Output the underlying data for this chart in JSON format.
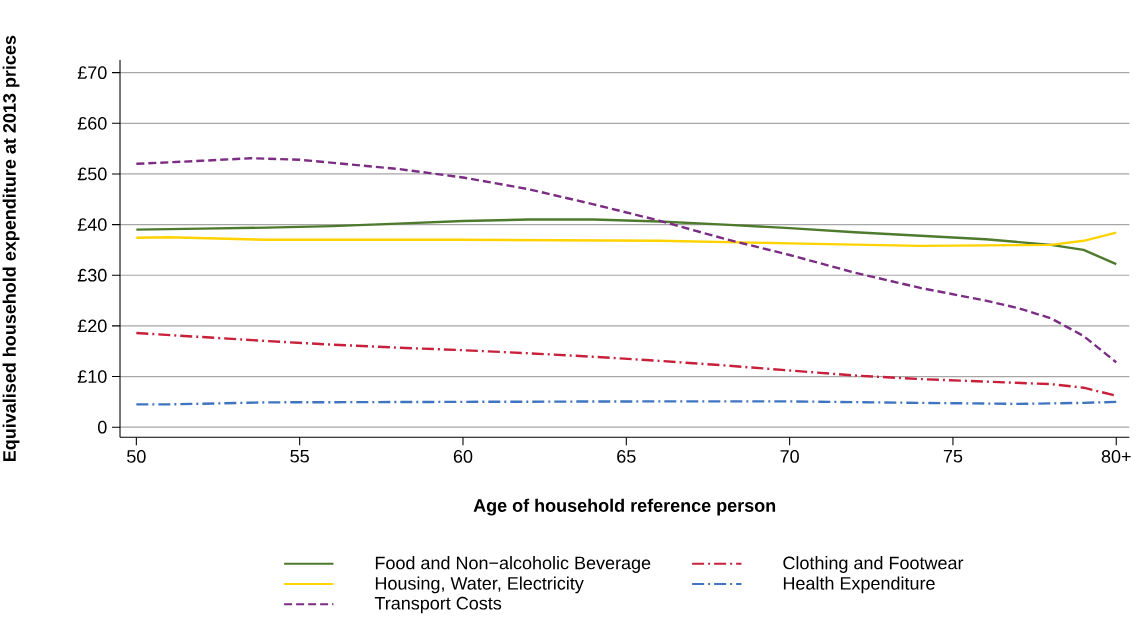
{
  "chart_data": {
    "type": "line",
    "xlabel": "Age of household reference person",
    "ylabel": "Equivalised household expenditure at 2013 prices",
    "xlim": [
      49.5,
      80.4
    ],
    "ylim": [
      -2,
      72.5
    ],
    "xticks": [
      50,
      55,
      60,
      65,
      70,
      75,
      {
        "value": 80,
        "label": "80+"
      }
    ],
    "yticks": [
      0,
      {
        "value": 10,
        "label": "£10"
      },
      {
        "value": 20,
        "label": "£20"
      },
      {
        "value": 30,
        "label": "£30"
      },
      {
        "value": 40,
        "label": "£40"
      },
      {
        "value": 50,
        "label": "£50"
      },
      {
        "value": 60,
        "label": "£60"
      },
      {
        "value": 70,
        "label": "£70"
      }
    ],
    "grid": "y",
    "legend": "bottom",
    "marker": "none",
    "series": [
      {
        "name": "Food and Non−alcoholic Beverage",
        "color": "#4e7a2e",
        "line_style": "solid",
        "x": [
          50,
          52,
          54,
          56,
          58,
          60,
          62,
          64,
          66,
          68,
          70,
          72,
          74,
          76,
          78,
          79,
          80
        ],
        "values": [
          39,
          39.2,
          39.4,
          39.7,
          40.2,
          40.7,
          41,
          41,
          40.6,
          40,
          39.3,
          38.5,
          37.8,
          37.1,
          36,
          35,
          32.2
        ]
      },
      {
        "name": "Clothing and Footwear",
        "color": "#c8203a",
        "line_style": "dashdot",
        "x": [
          50,
          52,
          54,
          56,
          58,
          60,
          62,
          64,
          66,
          68,
          70,
          72,
          74,
          76,
          78,
          79,
          80
        ],
        "values": [
          18.6,
          17.8,
          17,
          16.3,
          15.7,
          15.2,
          14.6,
          13.9,
          13.1,
          12.2,
          11.2,
          10.2,
          9.5,
          9,
          8.5,
          7.8,
          6.2
        ]
      },
      {
        "name": "Housing, Water, Electricity",
        "color": "#ffd200",
        "line_style": "solid",
        "x": [
          50,
          51,
          54,
          60,
          66,
          70,
          74,
          78,
          79,
          80
        ],
        "values": [
          37.4,
          37.5,
          37,
          37,
          36.8,
          36.3,
          35.8,
          36,
          36.8,
          38.4
        ]
      },
      {
        "name": "Health Expenditure",
        "color": "#3f75c0",
        "line_style": "dashdot",
        "x": [
          50,
          51,
          54,
          60,
          66,
          70,
          74,
          77,
          79,
          80
        ],
        "values": [
          4.5,
          4.5,
          4.9,
          5,
          5.1,
          5.1,
          4.8,
          4.6,
          4.8,
          5
        ]
      },
      {
        "name": "Transport Costs",
        "color": "#7b2c83",
        "line_style": "dashed",
        "x": [
          50,
          52,
          53.5,
          55,
          58,
          60,
          62,
          64,
          66,
          68,
          70,
          72,
          74,
          76,
          77,
          78,
          79,
          80
        ],
        "values": [
          52,
          52.6,
          53.1,
          52.8,
          51,
          49.3,
          47,
          44,
          40.8,
          37.2,
          34,
          30.5,
          27.5,
          25,
          23.5,
          21.5,
          18,
          12.8
        ]
      }
    ]
  }
}
